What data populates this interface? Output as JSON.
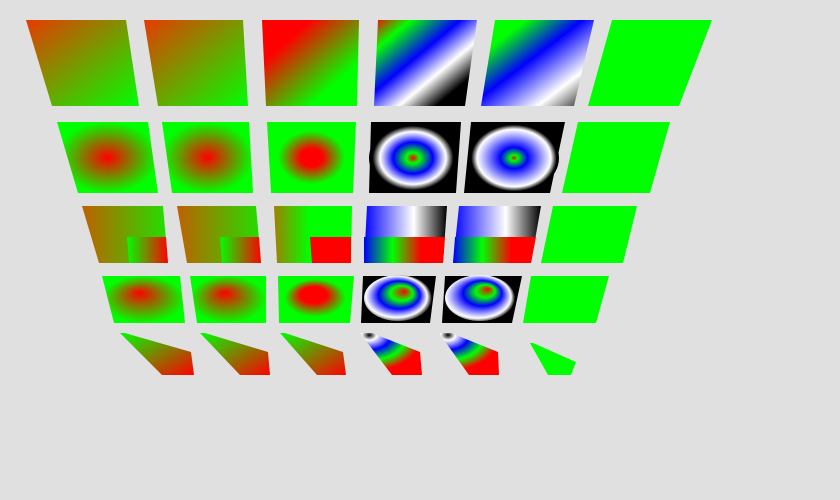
{
  "background_color": "#e0e0e0",
  "colors": {
    "red": "#ff0000",
    "green": "#00ff00",
    "blue": "#0000ff",
    "white": "#ffffff",
    "black": "#000000"
  },
  "grid": {
    "rows": 5,
    "columns": 6,
    "row_styles": [
      "linear",
      "radial",
      "sweep",
      "radial-offset",
      "linear-clipped"
    ],
    "column_palettes": [
      "red-green-soft",
      "red-green-soft",
      "red-green-hard",
      "multicolor",
      "multicolor-mirror",
      "solid-green"
    ]
  }
}
